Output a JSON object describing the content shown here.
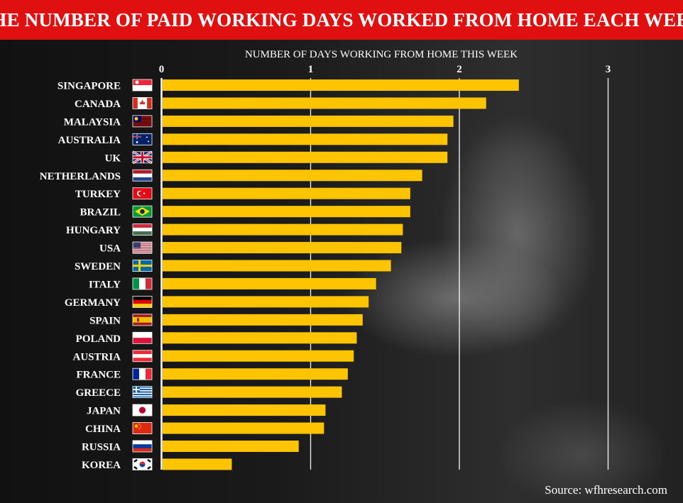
{
  "title": "THE NUMBER OF PAID WORKING DAYS WORKED FROM HOME EACH WEEK",
  "source": "Source: wfhresearch.com",
  "colors": {
    "title_bg": "#e11010",
    "bar": "#ffc400",
    "text": "#ffffff"
  },
  "chart_data": {
    "type": "bar",
    "orientation": "horizontal",
    "title": "THE NUMBER OF PAID WORKING DAYS WORKED FROM HOME EACH WEEK",
    "xlabel": "NUMBER OF DAYS WORKING FROM HOME THIS WEEK",
    "ylabel": "",
    "xlim": [
      0,
      3
    ],
    "ticks": [
      "0",
      "1",
      "2",
      "3"
    ],
    "grid": true,
    "categories": [
      "SINGAPORE",
      "CANADA",
      "MALAYSIA",
      "AUSTRALIA",
      "UK",
      "NETHERLANDS",
      "TURKEY",
      "BRAZIL",
      "HUNGARY",
      "USA",
      "SWEDEN",
      "ITALY",
      "GERMANY",
      "SPAIN",
      "POLAND",
      "AUSTRIA",
      "FRANCE",
      "GREECE",
      "JAPAN",
      "CHINA",
      "RUSSIA",
      "KOREA"
    ],
    "values": [
      2.4,
      2.18,
      1.96,
      1.92,
      1.92,
      1.75,
      1.67,
      1.67,
      1.62,
      1.61,
      1.54,
      1.44,
      1.39,
      1.35,
      1.31,
      1.29,
      1.25,
      1.21,
      1.1,
      1.09,
      0.92,
      0.47
    ],
    "flags": [
      "singapore-flag-icon",
      "canada-flag-icon",
      "malaysia-flag-icon",
      "australia-flag-icon",
      "uk-flag-icon",
      "netherlands-flag-icon",
      "turkey-flag-icon",
      "brazil-flag-icon",
      "hungary-flag-icon",
      "usa-flag-icon",
      "sweden-flag-icon",
      "italy-flag-icon",
      "germany-flag-icon",
      "spain-flag-icon",
      "poland-flag-icon",
      "austria-flag-icon",
      "france-flag-icon",
      "greece-flag-icon",
      "japan-flag-icon",
      "china-flag-icon",
      "russia-flag-icon",
      "korea-flag-icon"
    ]
  }
}
